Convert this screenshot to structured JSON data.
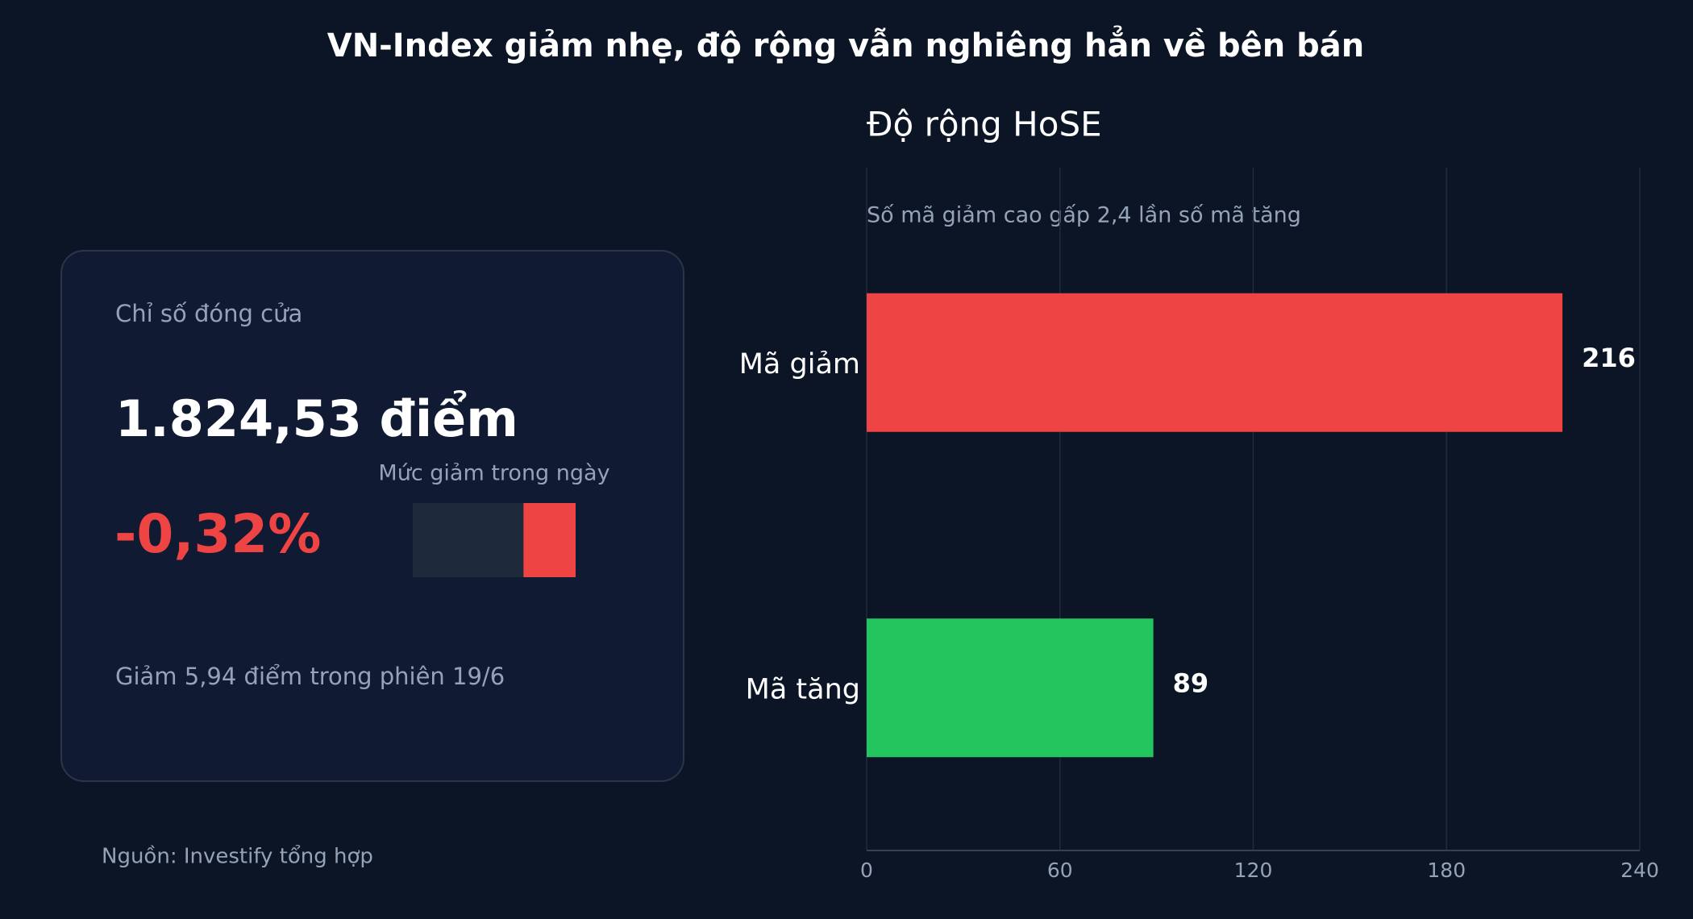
{
  "title": "VN-Index giảm nhẹ, độ rộng vẫn nghiêng hẳn về bên bán",
  "card": {
    "label": "Chỉ số đóng cửa",
    "index_value": "1.824,53 điểm",
    "change": {
      "value": -0.32,
      "label": "-0,32%"
    },
    "change_color": "#ef4444",
    "gauge_label": "Mức giảm trong ngày",
    "gauge_lim": [
      -1,
      0
    ],
    "note": "Giảm 5,94 điểm trong phiên 19/6"
  },
  "source": "Nguồn: Investify tổng hợp",
  "chart_data": {
    "type": "hbar",
    "title": "Độ rộng HoSE",
    "annotation": "Số mã giảm cao gấp 2,4 lần số mã tăng",
    "categories": [
      "Mã giảm",
      "Mã tăng"
    ],
    "values": [
      216,
      89
    ],
    "colors": [
      "#ef4444",
      "#22c55e"
    ],
    "xlim": [
      0,
      240
    ],
    "xticks": [
      0,
      60,
      120,
      180,
      240
    ],
    "grid": true
  }
}
